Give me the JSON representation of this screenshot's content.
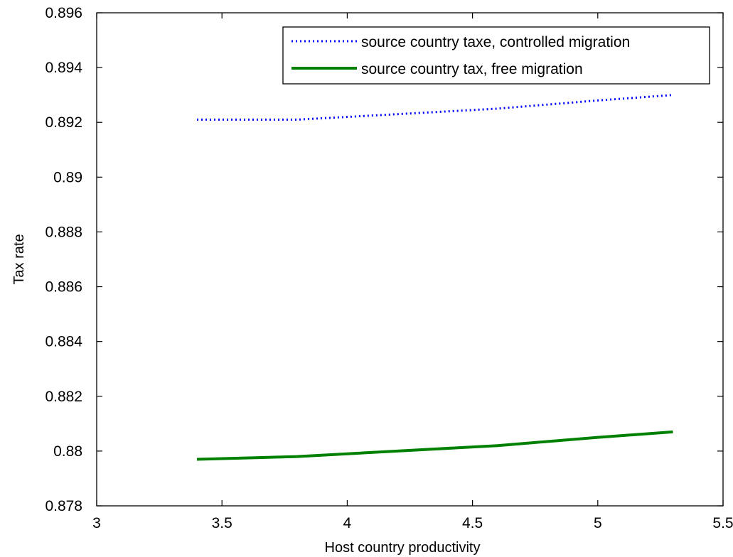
{
  "chart_data": {
    "type": "line",
    "title": "",
    "xlabel": "Host country productivity",
    "ylabel": "Tax rate",
    "xlim": [
      3,
      5.5
    ],
    "ylim": [
      0.878,
      0.896
    ],
    "x_ticks": [
      3,
      3.5,
      4,
      4.5,
      5,
      5.5
    ],
    "x_tick_labels": [
      "3",
      "3.5",
      "4",
      "4.5",
      "5",
      "5.5"
    ],
    "y_ticks": [
      0.878,
      0.88,
      0.882,
      0.884,
      0.886,
      0.888,
      0.89,
      0.892,
      0.894,
      0.896
    ],
    "y_tick_labels": [
      "0.878",
      "0.88",
      "0.882",
      "0.884",
      "0.886",
      "0.888",
      "0.89",
      "0.892",
      "0.894",
      "0.896"
    ],
    "grid": false,
    "legend_position": "top-right",
    "series": [
      {
        "name": "source country taxe, controlled migration",
        "color": "#0000ff",
        "style": "dotted",
        "x": [
          3.4,
          3.8,
          4.2,
          4.6,
          5.0,
          5.3
        ],
        "y": [
          0.8921,
          0.8921,
          0.8923,
          0.8925,
          0.8928,
          0.893
        ]
      },
      {
        "name": "source country tax, free migration",
        "color": "#008000",
        "style": "solid",
        "x": [
          3.4,
          3.8,
          4.2,
          4.6,
          5.0,
          5.3
        ],
        "y": [
          0.8797,
          0.8798,
          0.88,
          0.8802,
          0.8805,
          0.8807
        ]
      }
    ]
  }
}
